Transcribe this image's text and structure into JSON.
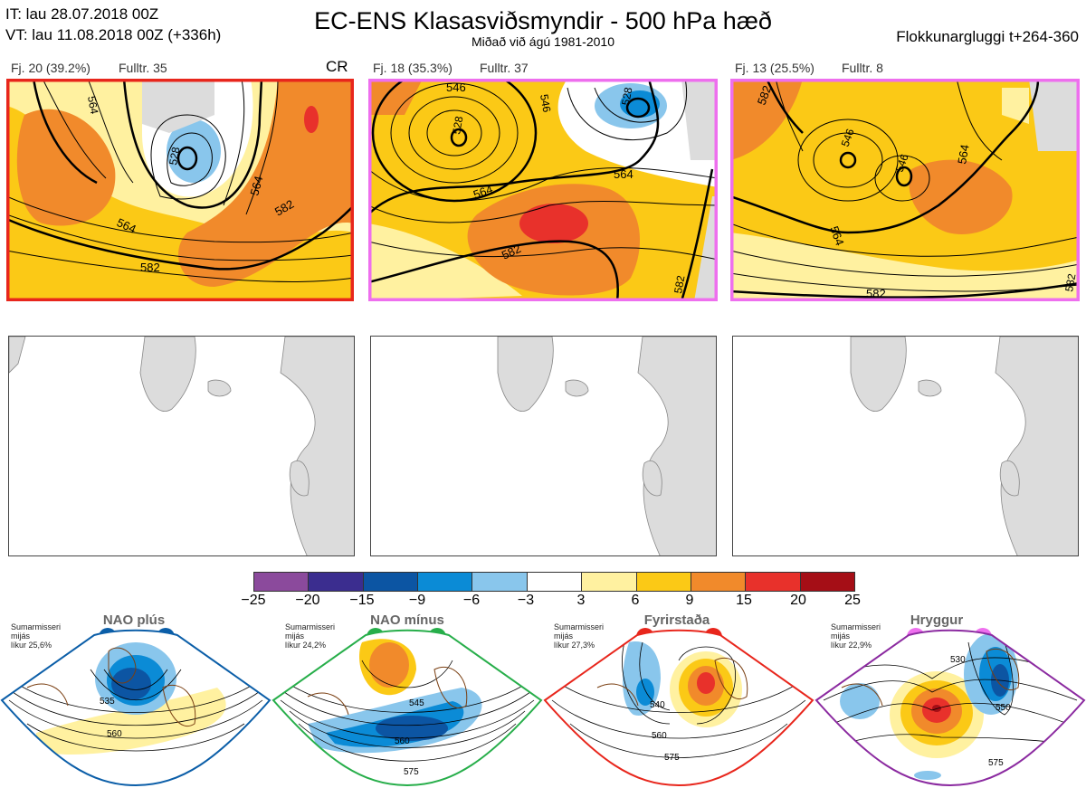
{
  "header": {
    "it": "IT: lau 28.07.2018 00Z",
    "vt": "VT: lau 11.08.2018 00Z  (+336h)",
    "title": "EC-ENS Klasasviðsmyndir - 500 hPa hæð",
    "subtitle": "Miðað við ágú 1981-2010",
    "window": "Flokkunargluggi t+264-360"
  },
  "clusters": [
    {
      "label": "Fj. 20 (39.2%)",
      "rep": "Fulltr. 35",
      "tag": "CR",
      "border": "#e8261c",
      "contours": [
        "564",
        "564",
        "582",
        "528",
        "564",
        "582"
      ]
    },
    {
      "label": "Fj. 18 (35.3%)",
      "rep": "Fulltr. 37",
      "tag": "",
      "border": "#ee6fee",
      "contours": [
        "546",
        "528",
        "528",
        "546",
        "564",
        "564",
        "582",
        "582"
      ]
    },
    {
      "label": "Fj. 13 (25.5%)",
      "rep": "Fulltr. 8",
      "tag": "",
      "border": "#ee6fee",
      "contours": [
        "582",
        "546",
        "546",
        "564",
        "564",
        "582",
        "582"
      ]
    }
  ],
  "colorbar": {
    "ticks": [
      "−25",
      "−20",
      "−15",
      "−9",
      "−6",
      "−3",
      "3",
      "6",
      "9",
      "15",
      "20",
      "25"
    ],
    "colors": [
      "#8b4a9c",
      "#3b2d8f",
      "#0c55a3",
      "#0b8bd6",
      "#89c6ec",
      "#ffffff",
      "#fff1a0",
      "#fbc916",
      "#f18a2b",
      "#e8312b",
      "#a50e16"
    ]
  },
  "regimes": [
    {
      "title": "NAO plús",
      "note": "Sumarmisseri\nmijás\nlíkur 25,6%",
      "color": "#0b5ea8",
      "contours": [
        "535",
        "560"
      ]
    },
    {
      "title": "NAO mínus",
      "note": "Sumarmisseri\nmijás\nlíkur 24,2%",
      "color": "#27ae4a",
      "contours": [
        "545",
        "560",
        "575"
      ]
    },
    {
      "title": "Fyrirstaða",
      "note": "Sumarmisseri\nmijás\nlíkur 27,3%",
      "color": "#e8261c",
      "contours": [
        "540",
        "560",
        "575"
      ]
    },
    {
      "title": "Hryggur",
      "note": "Sumarmisseri\nmijás\nlíkur 22,9%",
      "color": "#ee6fee",
      "contours": [
        "530",
        "550",
        "575"
      ]
    }
  ],
  "legend": {
    "land_color": "#dcdcdc",
    "coast_color": "#7a3f12",
    "contour_color": "#000000"
  }
}
